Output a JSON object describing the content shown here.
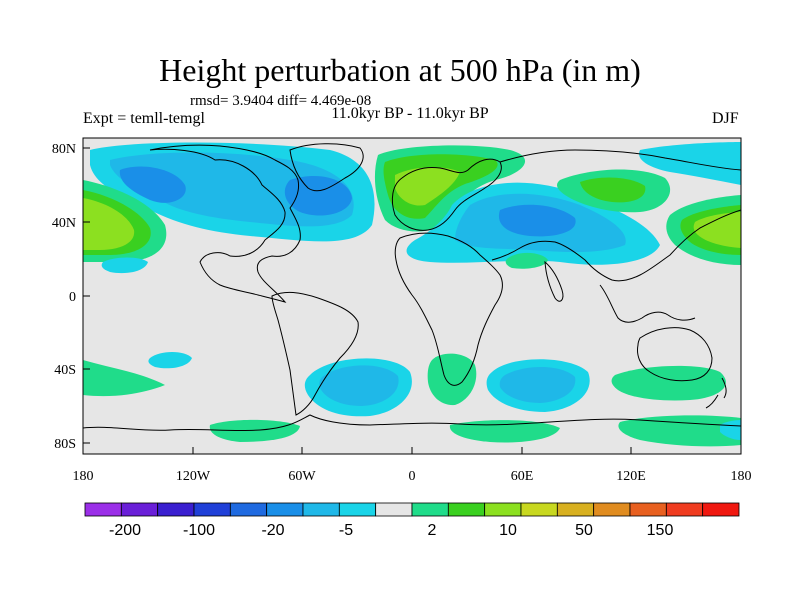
{
  "title": "Height perturbation at 500 hPa (in m)",
  "stats": "rmsd= 3.9404 diff= 4.469e-08",
  "experiment": "Expt = temll-temgl",
  "period": "11.0kyr BP - 11.0kyr BP",
  "season": "DJF",
  "lat_labels": [
    "80N",
    "40N",
    "0",
    "40S",
    "80S"
  ],
  "lon_labels": [
    "180",
    "120W",
    "60W",
    "0",
    "60E",
    "120E",
    "180"
  ],
  "colorbar": {
    "colors": [
      "#9b2fe8",
      "#6a1fd8",
      "#3a1fd0",
      "#2040d8",
      "#1f6ae0",
      "#1a8fe8",
      "#1fb8e8",
      "#1ad4e8",
      "#e6e6e6",
      "#20dc8a",
      "#3ad020",
      "#8ce020",
      "#c8d820",
      "#d8b020",
      "#e08c20",
      "#e86020",
      "#f03c20",
      "#f01810"
    ],
    "labels": [
      "-200",
      "-100",
      "-20",
      "-5",
      "2",
      "10",
      "50",
      "150"
    ]
  },
  "palette": {
    "background": "#e6e6e6",
    "neg_light": "#1ad4e8",
    "neg_mid": "#1fb8e8",
    "neg_strong": "#1a8fe8",
    "pos_light": "#20dc8a",
    "pos_mid": "#3ad020",
    "pos_strong": "#8ce020",
    "pos_top": "#c8d820"
  }
}
